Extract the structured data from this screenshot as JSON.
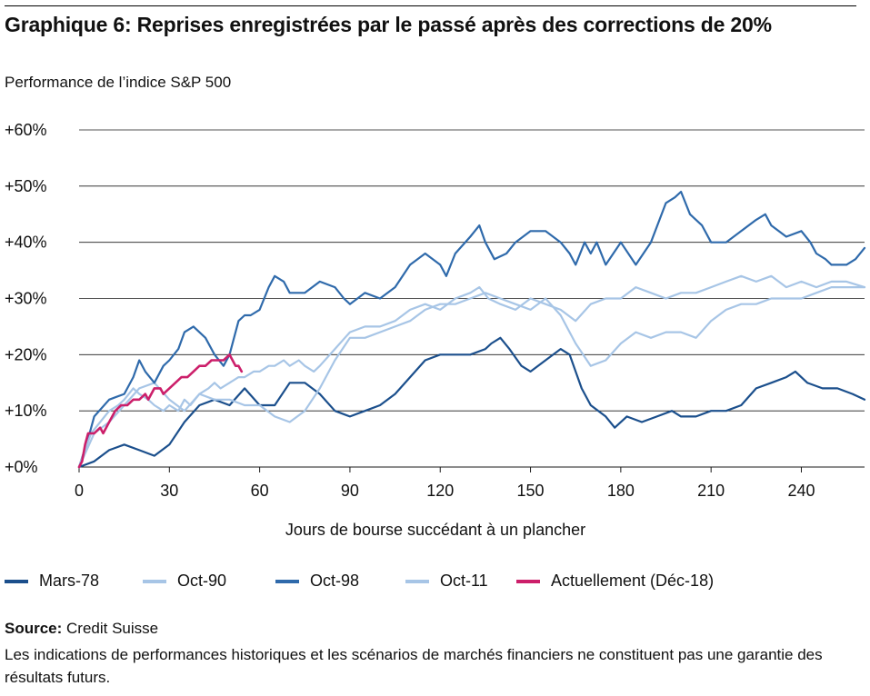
{
  "header": {
    "title": "Graphique 6: Reprises enregistrées par le passé après des corrections de 20%",
    "subtitle": "Performance de l’indice S&P 500"
  },
  "chart_data": {
    "type": "line",
    "ylabel": "Performance de l’indice S&P 500",
    "xlabel": "Jours de bourse succédant à un plancher",
    "xlim": [
      0,
      261
    ],
    "ylim": [
      0,
      60
    ],
    "x_ticks": [
      0,
      30,
      60,
      90,
      120,
      150,
      180,
      210,
      240
    ],
    "x_tick_labels": [
      "0",
      "30",
      "60",
      "90",
      "120",
      "150",
      "180",
      "210",
      "240"
    ],
    "y_ticks": [
      0,
      10,
      20,
      30,
      40,
      50,
      60
    ],
    "y_tick_labels": [
      "+0%",
      "+10%",
      "+20%",
      "+30%",
      "+40%",
      "+50%",
      "+60%"
    ],
    "grid": true,
    "legend_position": "bottom",
    "series": [
      {
        "name": "Mars-78",
        "color": "#1b4f8c",
        "points": [
          [
            0,
            0
          ],
          [
            5,
            1
          ],
          [
            10,
            3
          ],
          [
            15,
            4
          ],
          [
            20,
            3
          ],
          [
            25,
            2
          ],
          [
            30,
            4
          ],
          [
            35,
            8
          ],
          [
            40,
            11
          ],
          [
            45,
            12
          ],
          [
            50,
            11
          ],
          [
            55,
            14
          ],
          [
            60,
            11
          ],
          [
            65,
            11
          ],
          [
            70,
            15
          ],
          [
            75,
            15
          ],
          [
            80,
            13
          ],
          [
            85,
            10
          ],
          [
            90,
            9
          ],
          [
            95,
            10
          ],
          [
            100,
            11
          ],
          [
            105,
            13
          ],
          [
            110,
            16
          ],
          [
            115,
            19
          ],
          [
            120,
            20
          ],
          [
            125,
            20
          ],
          [
            130,
            20
          ],
          [
            135,
            21
          ],
          [
            137,
            22
          ],
          [
            140,
            23
          ],
          [
            143,
            21
          ],
          [
            147,
            18
          ],
          [
            150,
            17
          ],
          [
            155,
            19
          ],
          [
            160,
            21
          ],
          [
            163,
            20
          ],
          [
            167,
            14
          ],
          [
            170,
            11
          ],
          [
            175,
            9
          ],
          [
            178,
            7
          ],
          [
            182,
            9
          ],
          [
            187,
            8
          ],
          [
            192,
            9
          ],
          [
            197,
            10
          ],
          [
            200,
            9
          ],
          [
            205,
            9
          ],
          [
            210,
            10
          ],
          [
            215,
            10
          ],
          [
            220,
            11
          ],
          [
            225,
            14
          ],
          [
            230,
            15
          ],
          [
            235,
            16
          ],
          [
            238,
            17
          ],
          [
            242,
            15
          ],
          [
            247,
            14
          ],
          [
            252,
            14
          ],
          [
            257,
            13
          ],
          [
            261,
            12
          ]
        ]
      },
      {
        "name": "Oct-90",
        "color": "#a7c5e6",
        "points": [
          [
            0,
            0
          ],
          [
            5,
            6
          ],
          [
            10,
            8
          ],
          [
            15,
            11
          ],
          [
            20,
            14
          ],
          [
            25,
            15
          ],
          [
            30,
            12
          ],
          [
            35,
            10
          ],
          [
            40,
            13
          ],
          [
            45,
            12
          ],
          [
            50,
            12
          ],
          [
            55,
            11
          ],
          [
            60,
            11
          ],
          [
            65,
            9
          ],
          [
            70,
            8
          ],
          [
            75,
            10
          ],
          [
            80,
            14
          ],
          [
            85,
            19
          ],
          [
            90,
            23
          ],
          [
            95,
            23
          ],
          [
            100,
            24
          ],
          [
            105,
            25
          ],
          [
            110,
            26
          ],
          [
            115,
            28
          ],
          [
            120,
            29
          ],
          [
            125,
            29
          ],
          [
            130,
            30
          ],
          [
            135,
            31
          ],
          [
            140,
            30
          ],
          [
            145,
            29
          ],
          [
            150,
            28
          ],
          [
            155,
            30
          ],
          [
            160,
            27
          ],
          [
            165,
            22
          ],
          [
            170,
            18
          ],
          [
            175,
            19
          ],
          [
            180,
            22
          ],
          [
            185,
            24
          ],
          [
            190,
            23
          ],
          [
            195,
            24
          ],
          [
            200,
            24
          ],
          [
            205,
            23
          ],
          [
            210,
            26
          ],
          [
            215,
            28
          ],
          [
            220,
            29
          ],
          [
            225,
            29
          ],
          [
            230,
            30
          ],
          [
            235,
            30
          ],
          [
            240,
            30
          ],
          [
            245,
            31
          ],
          [
            250,
            32
          ],
          [
            255,
            32
          ],
          [
            261,
            32
          ]
        ]
      },
      {
        "name": "Oct-98",
        "color": "#2f6aab",
        "points": [
          [
            0,
            0
          ],
          [
            3,
            5
          ],
          [
            5,
            9
          ],
          [
            10,
            12
          ],
          [
            15,
            13
          ],
          [
            18,
            16
          ],
          [
            20,
            19
          ],
          [
            22,
            17
          ],
          [
            25,
            15
          ],
          [
            28,
            18
          ],
          [
            30,
            19
          ],
          [
            33,
            21
          ],
          [
            35,
            24
          ],
          [
            38,
            25
          ],
          [
            42,
            23
          ],
          [
            45,
            20
          ],
          [
            48,
            18
          ],
          [
            50,
            20
          ],
          [
            53,
            26
          ],
          [
            55,
            27
          ],
          [
            57,
            27
          ],
          [
            60,
            28
          ],
          [
            63,
            32
          ],
          [
            65,
            34
          ],
          [
            68,
            33
          ],
          [
            70,
            31
          ],
          [
            75,
            31
          ],
          [
            80,
            33
          ],
          [
            85,
            32
          ],
          [
            88,
            30
          ],
          [
            90,
            29
          ],
          [
            95,
            31
          ],
          [
            100,
            30
          ],
          [
            105,
            32
          ],
          [
            110,
            36
          ],
          [
            115,
            38
          ],
          [
            120,
            36
          ],
          [
            122,
            34
          ],
          [
            125,
            38
          ],
          [
            130,
            41
          ],
          [
            133,
            43
          ],
          [
            135,
            40
          ],
          [
            138,
            37
          ],
          [
            142,
            38
          ],
          [
            145,
            40
          ],
          [
            150,
            42
          ],
          [
            155,
            42
          ],
          [
            160,
            40
          ],
          [
            163,
            38
          ],
          [
            165,
            36
          ],
          [
            168,
            40
          ],
          [
            170,
            38
          ],
          [
            172,
            40
          ],
          [
            175,
            36
          ],
          [
            180,
            40
          ],
          [
            185,
            36
          ],
          [
            190,
            40
          ],
          [
            195,
            47
          ],
          [
            198,
            48
          ],
          [
            200,
            49
          ],
          [
            203,
            45
          ],
          [
            207,
            43
          ],
          [
            210,
            40
          ],
          [
            215,
            40
          ],
          [
            220,
            42
          ],
          [
            225,
            44
          ],
          [
            228,
            45
          ],
          [
            230,
            43
          ],
          [
            235,
            41
          ],
          [
            240,
            42
          ],
          [
            243,
            40
          ],
          [
            245,
            38
          ],
          [
            248,
            37
          ],
          [
            250,
            36
          ],
          [
            255,
            36
          ],
          [
            258,
            37
          ],
          [
            261,
            39
          ]
        ]
      },
      {
        "name": "Oct-11",
        "color": "#a7c5e6",
        "points": [
          [
            0,
            0
          ],
          [
            2,
            3
          ],
          [
            4,
            6
          ],
          [
            7,
            8
          ],
          [
            10,
            10
          ],
          [
            13,
            11
          ],
          [
            15,
            12
          ],
          [
            18,
            14
          ],
          [
            20,
            13
          ],
          [
            23,
            12
          ],
          [
            25,
            11
          ],
          [
            28,
            10
          ],
          [
            30,
            11
          ],
          [
            33,
            10
          ],
          [
            35,
            12
          ],
          [
            37,
            11
          ],
          [
            40,
            13
          ],
          [
            43,
            14
          ],
          [
            45,
            15
          ],
          [
            47,
            14
          ],
          [
            50,
            15
          ],
          [
            53,
            16
          ],
          [
            55,
            16
          ],
          [
            58,
            17
          ],
          [
            60,
            17
          ],
          [
            63,
            18
          ],
          [
            65,
            18
          ],
          [
            68,
            19
          ],
          [
            70,
            18
          ],
          [
            73,
            19
          ],
          [
            75,
            18
          ],
          [
            78,
            17
          ],
          [
            80,
            18
          ],
          [
            85,
            21
          ],
          [
            90,
            24
          ],
          [
            95,
            25
          ],
          [
            100,
            25
          ],
          [
            105,
            26
          ],
          [
            110,
            28
          ],
          [
            115,
            29
          ],
          [
            120,
            28
          ],
          [
            125,
            30
          ],
          [
            130,
            31
          ],
          [
            133,
            32
          ],
          [
            136,
            30
          ],
          [
            140,
            29
          ],
          [
            145,
            28
          ],
          [
            150,
            30
          ],
          [
            155,
            29
          ],
          [
            160,
            28
          ],
          [
            165,
            26
          ],
          [
            170,
            29
          ],
          [
            175,
            30
          ],
          [
            180,
            30
          ],
          [
            185,
            32
          ],
          [
            190,
            31
          ],
          [
            195,
            30
          ],
          [
            200,
            31
          ],
          [
            205,
            31
          ],
          [
            210,
            32
          ],
          [
            215,
            33
          ],
          [
            220,
            34
          ],
          [
            225,
            33
          ],
          [
            230,
            34
          ],
          [
            235,
            32
          ],
          [
            240,
            33
          ],
          [
            245,
            32
          ],
          [
            250,
            33
          ],
          [
            255,
            33
          ],
          [
            261,
            32
          ]
        ]
      },
      {
        "name": "Actuellement (Déc-18)",
        "color": "#cc1f6a",
        "points": [
          [
            0,
            0
          ],
          [
            1,
            1
          ],
          [
            2,
            4
          ],
          [
            3,
            6
          ],
          [
            5,
            6
          ],
          [
            7,
            7
          ],
          [
            8,
            6
          ],
          [
            10,
            8
          ],
          [
            12,
            10
          ],
          [
            14,
            11
          ],
          [
            16,
            11
          ],
          [
            18,
            12
          ],
          [
            20,
            12
          ],
          [
            22,
            13
          ],
          [
            23,
            12
          ],
          [
            25,
            14
          ],
          [
            27,
            14
          ],
          [
            28,
            13
          ],
          [
            30,
            14
          ],
          [
            32,
            15
          ],
          [
            34,
            16
          ],
          [
            36,
            16
          ],
          [
            38,
            17
          ],
          [
            40,
            18
          ],
          [
            42,
            18
          ],
          [
            44,
            19
          ],
          [
            46,
            19
          ],
          [
            48,
            19
          ],
          [
            50,
            20
          ],
          [
            51,
            19
          ],
          [
            52,
            18
          ],
          [
            53,
            18
          ],
          [
            54,
            17
          ]
        ]
      }
    ]
  },
  "footer": {
    "source_label": "Source:",
    "source_value": " Credit Suisse",
    "disclaimer": "Les indications de performances historiques et les scénarios de marchés financiers ne constituent pas une garantie des résultats futurs."
  }
}
